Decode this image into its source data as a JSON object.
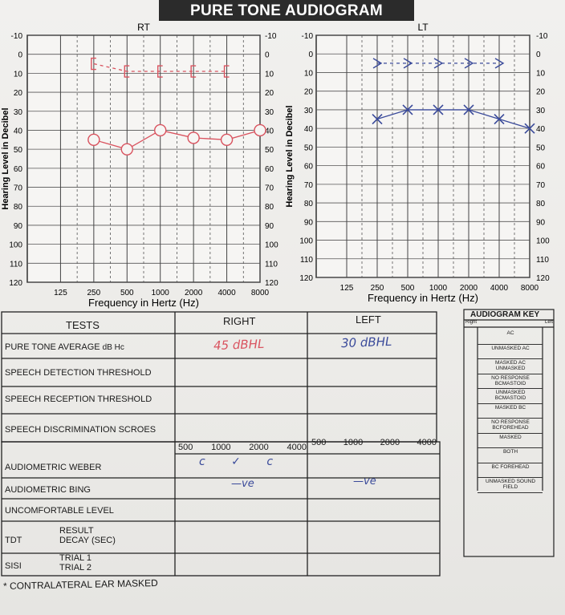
{
  "title": "PURE TONE AUDIOGRAM",
  "chart_data": [
    {
      "type": "line",
      "ear_label": "RT",
      "ylabel": "Hearing Level in Decibel",
      "xlabel": "Frequency in Hertz (Hz)",
      "x_ticks": [
        "125",
        "250",
        "500",
        "1000",
        "2000",
        "4000",
        "8000"
      ],
      "y_ticks": [
        "-10",
        "0",
        "10",
        "20",
        "30",
        "40",
        "50",
        "60",
        "70",
        "80",
        "90",
        "100",
        "110",
        "120"
      ],
      "ylim": [
        -10,
        120
      ],
      "y_inverted": true,
      "series": [
        {
          "symbol": "O",
          "color": "#d9535f",
          "x": [
            "250",
            "500",
            "1000",
            "2000",
            "4000",
            "8000"
          ],
          "y": [
            45,
            50,
            40,
            44,
            45,
            40
          ]
        },
        {
          "symbol": "[",
          "color": "#d9535f",
          "x": [
            "250",
            "500",
            "1000",
            "2000",
            "4000"
          ],
          "y": [
            5,
            9,
            9,
            9,
            9
          ]
        }
      ]
    },
    {
      "type": "line",
      "ear_label": "LT",
      "ylabel": "Hearing Level in Decibel",
      "xlabel": "Frequency in Hertz (Hz)",
      "x_ticks": [
        "125",
        "250",
        "500",
        "1000",
        "2000",
        "4000",
        "8000"
      ],
      "y_ticks": [
        "-10",
        "0",
        "10",
        "20",
        "30",
        "40",
        "50",
        "60",
        "70",
        "80",
        "90",
        "100",
        "110",
        "120"
      ],
      "ylim": [
        -10,
        120
      ],
      "y_inverted": true,
      "series": [
        {
          "symbol": "X",
          "color": "#3a4a9a",
          "x": [
            "250",
            "500",
            "1000",
            "2000",
            "4000",
            "8000"
          ],
          "y": [
            35,
            30,
            30,
            30,
            35,
            40
          ]
        },
        {
          "symbol": ">",
          "color": "#3a4a9a",
          "x": [
            "250",
            "500",
            "1000",
            "2000",
            "4000"
          ],
          "y": [
            5,
            5,
            5,
            5,
            5
          ]
        }
      ]
    }
  ],
  "tests": {
    "header": {
      "tests": "TESTS",
      "right": "RIGHT",
      "left": "LEFT"
    },
    "rows": [
      {
        "label": "PURE TONE AVERAGE",
        "unit": "dB Hc",
        "right": "45 dBHL",
        "left": "30 dBHL"
      },
      {
        "label": "SPEECH DETECTION THRESHOLD",
        "right": "",
        "left": ""
      },
      {
        "label": "SPEECH RECEPTION THRESHOLD",
        "right": "",
        "left": ""
      },
      {
        "label": "SPEECH DISCRIMINATION SCROES",
        "right": "",
        "left": ""
      }
    ],
    "freq_header": {
      "right": [
        "500",
        "1000",
        "2000",
        "4000"
      ],
      "left": [
        "500",
        "1000",
        "2000",
        "4000"
      ]
    },
    "rows2": [
      {
        "label": "AUDIOMETRIC WEBER",
        "right": "c ✓ c",
        "left": ""
      },
      {
        "label": "AUDIOMETRIC BING",
        "right": "—ve",
        "left": "—ve"
      },
      {
        "label": "UNCOMFORTABLE LEVEL",
        "right": "",
        "left": ""
      }
    ],
    "tdt": {
      "label": "TDT",
      "sub1": "RESULT",
      "sub2": "DECAY (SEC)"
    },
    "sisi": {
      "label": "SISI",
      "sub1": "TRIAL 1",
      "sub2": "TRIAL 2"
    },
    "footnote": "* CONTRALATERAL EAR MASKED"
  },
  "key": {
    "title": "AUDIOGRAM KEY",
    "right_label": "Right",
    "left_label": "Left",
    "items": [
      "AC",
      "UNMASKED AC",
      "MASKED AC UNMASKED",
      "NO RESPONSE BCMASTOID",
      "UNMASKED BCMASTOID",
      "MASKED BC",
      "NO RESPONSE BCFOREHEAD",
      "MASKED",
      "BOTH",
      "BC FOREHEAD",
      "UNMASKED SOUND FIELD"
    ]
  }
}
